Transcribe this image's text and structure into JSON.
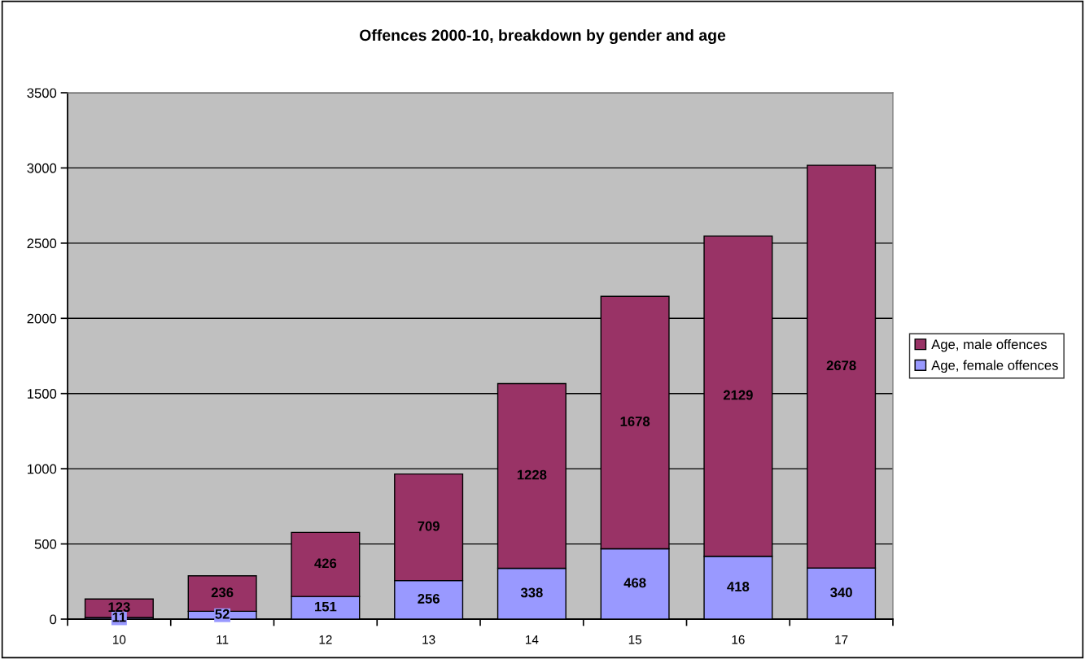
{
  "chart_data": {
    "type": "bar",
    "title": "Offences 2000-10, breakdown by gender and age",
    "categories": [
      "10",
      "11",
      "12",
      "13",
      "14",
      "15",
      "16",
      "17"
    ],
    "stacked": true,
    "series": [
      {
        "name": "Age, female offences",
        "color": "#9999ff",
        "values": [
          11,
          52,
          151,
          256,
          338,
          468,
          418,
          340
        ]
      },
      {
        "name": "Age, male offences",
        "color": "#993366",
        "values": [
          123,
          236,
          426,
          709,
          1228,
          1678,
          2129,
          2678
        ]
      }
    ],
    "ylim": [
      0,
      3500
    ],
    "yticks": [
      0,
      500,
      1000,
      1500,
      2000,
      2500,
      3000,
      3500
    ],
    "grid": "y",
    "legend": "right",
    "data_labels": true
  }
}
